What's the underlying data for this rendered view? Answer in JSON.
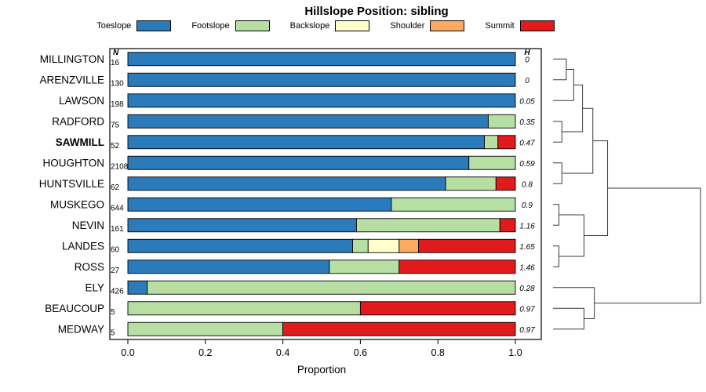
{
  "chart_data": {
    "type": "bar",
    "stacked": true,
    "orientation": "horizontal",
    "title": "Hillslope Position: sibling",
    "xlabel": "Proportion",
    "xlim": [
      0,
      1
    ],
    "xticks": [
      0.0,
      0.2,
      0.4,
      0.6,
      0.8,
      1.0
    ],
    "xtick_labels": [
      "0.0",
      "0.2",
      "0.4",
      "0.6",
      "0.8",
      "1.0"
    ],
    "legend": [
      {
        "label": "Toeslope",
        "color": "#2b7ab9"
      },
      {
        "label": "Footslope",
        "color": "#b7dfa3"
      },
      {
        "label": "Backslope",
        "color": "#ffffcc"
      },
      {
        "label": "Shoulder",
        "color": "#fcab60"
      },
      {
        "label": "Summit",
        "color": "#e11b1b"
      }
    ],
    "columns": {
      "n_header": "N",
      "h_header": "H"
    },
    "rows": [
      {
        "name": "MILLINGTON",
        "n": "16",
        "h": "0",
        "bold": false,
        "segments": [
          1,
          0,
          0,
          0,
          0
        ]
      },
      {
        "name": "ARENZVILLE",
        "n": "130",
        "h": "0",
        "bold": false,
        "segments": [
          1,
          0,
          0,
          0,
          0
        ]
      },
      {
        "name": "LAWSON",
        "n": "198",
        "h": "0.05",
        "bold": false,
        "segments": [
          1,
          0,
          0,
          0,
          0
        ]
      },
      {
        "name": "RADFORD",
        "n": "75",
        "h": "0.35",
        "bold": false,
        "segments": [
          0.93,
          0.07,
          0,
          0,
          0
        ]
      },
      {
        "name": "SAWMILL",
        "n": "52",
        "h": "0.47",
        "bold": true,
        "segments": [
          0.92,
          0.035,
          0,
          0,
          0.045
        ]
      },
      {
        "name": "HOUGHTON",
        "n": "2108",
        "h": "0.59",
        "bold": false,
        "segments": [
          0.88,
          0.12,
          0,
          0,
          0
        ]
      },
      {
        "name": "HUNTSVILLE",
        "n": "62",
        "h": "0.8",
        "bold": false,
        "segments": [
          0.82,
          0.13,
          0,
          0,
          0.05
        ]
      },
      {
        "name": "MUSKEGO",
        "n": "644",
        "h": "0.9",
        "bold": false,
        "segments": [
          0.68,
          0.32,
          0,
          0,
          0
        ]
      },
      {
        "name": "NEVIN",
        "n": "161",
        "h": "1.16",
        "bold": false,
        "segments": [
          0.59,
          0.37,
          0,
          0,
          0.04
        ]
      },
      {
        "name": "LANDES",
        "n": "60",
        "h": "1.65",
        "bold": false,
        "segments": [
          0.58,
          0.04,
          0.08,
          0.05,
          0.25
        ]
      },
      {
        "name": "ROSS",
        "n": "27",
        "h": "1.46",
        "bold": false,
        "segments": [
          0.52,
          0.18,
          0,
          0,
          0.3
        ]
      },
      {
        "name": "ELY",
        "n": "426",
        "h": "0.28",
        "bold": false,
        "segments": [
          0.05,
          0.95,
          0,
          0,
          0
        ]
      },
      {
        "name": "BEAUCOUP",
        "n": "5",
        "h": "0.97",
        "bold": false,
        "segments": [
          0,
          0.6,
          0,
          0,
          0.4
        ]
      },
      {
        "name": "MEDWAY",
        "n": "5",
        "h": "0.97",
        "bold": false,
        "segments": [
          0,
          0.4,
          0,
          0,
          0.6
        ]
      }
    ],
    "dendrogram": {
      "note": "heights normalized 0-1, leaves in row order top to bottom",
      "merges": [
        {
          "a": "L0",
          "b": "L1",
          "h": 0.09
        },
        {
          "a": "M0",
          "b": "L2",
          "h": 0.14
        },
        {
          "a": "L3",
          "b": "L4",
          "h": 0.06
        },
        {
          "a": "M1",
          "b": "M2",
          "h": 0.2
        },
        {
          "a": "L5",
          "b": "L6",
          "h": 0.06
        },
        {
          "a": "M3",
          "b": "M4",
          "h": 0.27
        },
        {
          "a": "L7",
          "b": "L8",
          "h": 0.04
        },
        {
          "a": "L9",
          "b": "L10",
          "h": 0.04
        },
        {
          "a": "M6",
          "b": "M7",
          "h": 0.21
        },
        {
          "a": "M5",
          "b": "M8",
          "h": 0.37
        },
        {
          "a": "L12",
          "b": "L13",
          "h": 0.21
        },
        {
          "a": "L11",
          "b": "M10",
          "h": 0.28
        },
        {
          "a": "M9",
          "b": "M11",
          "h": 1.0
        }
      ]
    }
  }
}
